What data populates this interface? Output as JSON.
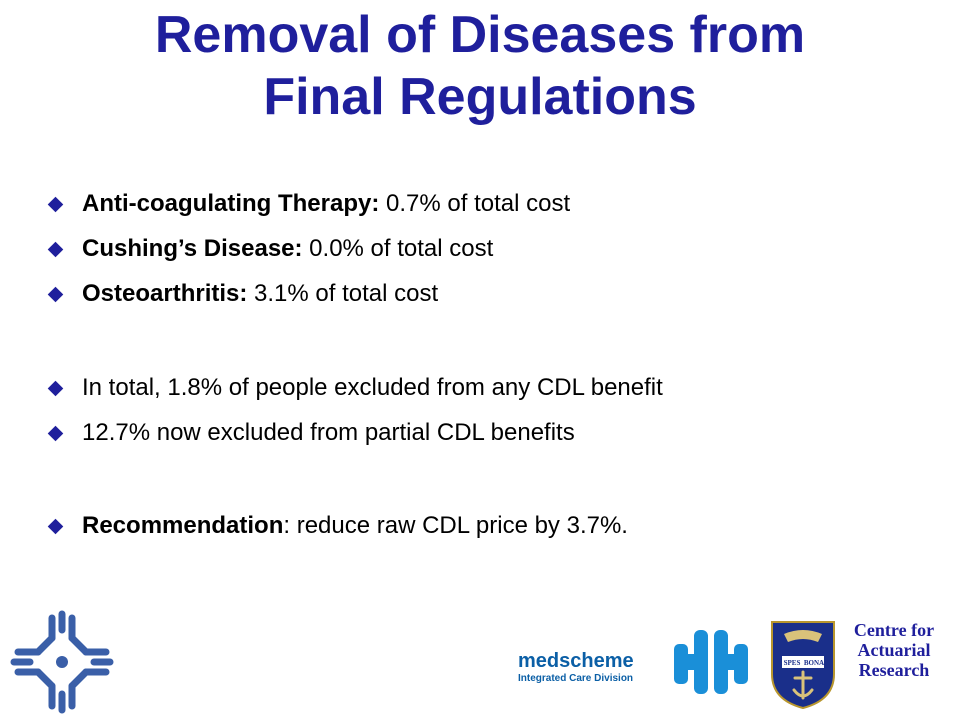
{
  "title": {
    "line1": "Removal of Diseases from",
    "line2": "Final Regulations"
  },
  "bullets": [
    {
      "bold": "Anti-coagulating Therapy:",
      "text": " 0.7% of total cost"
    },
    {
      "bold": "Cushing’s Disease:",
      "text": " 0.0% of total cost"
    },
    {
      "bold": "Osteoarthritis:",
      "text": " 3.1% of total cost"
    },
    {
      "bold": "",
      "text": "In total, 1.8% of people excluded from any CDL benefit"
    },
    {
      "bold": "",
      "text": "12.7% now excluded from partial CDL benefits"
    },
    {
      "bold": "Recommendation",
      "text": ": reduce raw CDL price by 3.7%."
    }
  ],
  "logos": {
    "medscheme_name": "medscheme",
    "medscheme_sub": "Integrated Care Division",
    "crest_motto_left": "SPES",
    "crest_motto_right": "BONA",
    "car_line1": "Centre for",
    "car_line2": "Actuarial",
    "car_line3": "Research"
  },
  "colors": {
    "title": "#1f1f9c",
    "bullet": "#1f1f9c",
    "medscheme": "#0b5fa6",
    "crest_field": "#1a2f8a"
  },
  "icons": {
    "bullet": "diamond-bullet-icon",
    "left_logo": "cross-emblem-logo",
    "crest": "university-crest-logo"
  }
}
